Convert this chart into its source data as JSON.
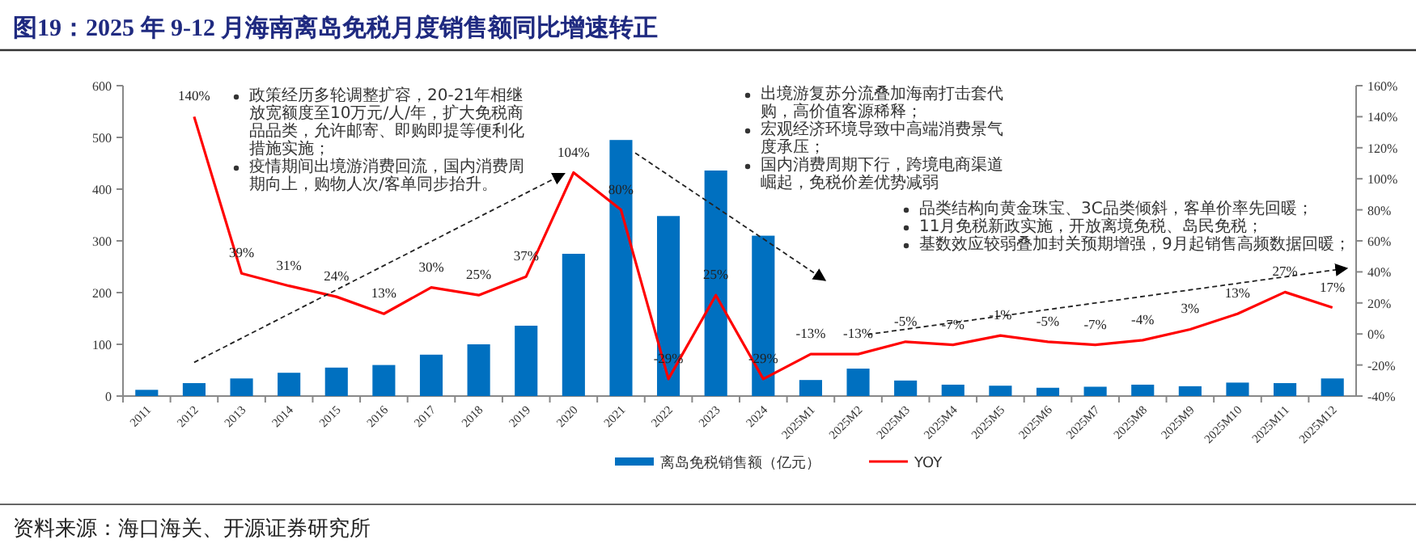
{
  "chart_data": {
    "type": "bar",
    "title": "图19：2025 年 9-12 月海南离岛免税月度销售额同比增速转正",
    "categories": [
      "2011",
      "2012",
      "2013",
      "2014",
      "2015",
      "2016",
      "2017",
      "2018",
      "2019",
      "2020",
      "2021",
      "2022",
      "2023",
      "2024",
      "2025M1",
      "2025M2",
      "2025M3",
      "2025M4",
      "2025M5",
      "2025M6",
      "2025M7",
      "2025M8",
      "2025M9",
      "2025M10",
      "2025M11",
      "2025M12"
    ],
    "series": [
      {
        "name": "离岛免税销售额（亿元）",
        "color": "#0070c0",
        "values": [
          12,
          25,
          34,
          45,
          55,
          60,
          80,
          100,
          136,
          275,
          495,
          348,
          436,
          310,
          31,
          53,
          30,
          22,
          20,
          16,
          18,
          22,
          19,
          26,
          25,
          34
        ]
      },
      {
        "name": "YOY",
        "type": "line",
        "axis": "y2",
        "color": "#ff0000",
        "data_labels": true,
        "marker": "none",
        "values": [
          null,
          140,
          39,
          31,
          24,
          13,
          30,
          25,
          37,
          104,
          80,
          -29,
          25,
          -29,
          -13,
          -13,
          -5,
          -7,
          -1,
          -5,
          -7,
          -4,
          3,
          13,
          27,
          17
        ],
        "value_labels": [
          null,
          "140%",
          "39%",
          "31%",
          "24%",
          "13%",
          "30%",
          "25%",
          "37%",
          "104%",
          "80%",
          "-29%",
          "25%",
          "-29%",
          "-13%",
          "-13%",
          "-5%",
          "-7%",
          "-1%",
          "-5%",
          "-7%",
          "-4%",
          "3%",
          "13%",
          "27%",
          "17%"
        ]
      }
    ],
    "ylim": [
      0,
      600
    ],
    "yticks": [
      0,
      100,
      200,
      300,
      400,
      500,
      600
    ],
    "y2lim": [
      -40,
      160
    ],
    "y2ticks": [
      {
        "value": -40,
        "label": "-40%"
      },
      {
        "value": -20,
        "label": "-20%"
      },
      {
        "value": 0,
        "label": "0%"
      },
      {
        "value": 20,
        "label": "20%"
      },
      {
        "value": 40,
        "label": "40%"
      },
      {
        "value": 60,
        "label": "60%"
      },
      {
        "value": 80,
        "label": "80%"
      },
      {
        "value": 100,
        "label": "100%"
      },
      {
        "value": 120,
        "label": "120%"
      },
      {
        "value": 140,
        "label": "140%"
      },
      {
        "value": 160,
        "label": "160%"
      }
    ],
    "grid": false,
    "legend": "bottom",
    "annotations": [
      "政策经历多轮调整扩容，20-21年相继放宽额度至10万元/人/年，扩大免税商品品类，允许邮寄、即购即提等便利化措施实施；",
      "疫情期间出境游消费回流，国内消费周期向上，购物人次/客单同步抬升。",
      "出境游复苏分流叠加海南打击套代购，高价值客源稀释；",
      "宏观经济环境导致中高端消费景气度承压；",
      "国内消费周期下行，跨境电商渠道崛起，免税价差优势减弱",
      "品类结构向黄金珠宝、3C品类倾斜，客单价率先回暖；",
      "11月免税新政实施，开放离境免税、岛民免税；",
      "基数效应较弱叠加封关预期增强，9月起销售高频数据回暖；",
      "资料来源：海口海关、开源证券研究所"
    ]
  }
}
